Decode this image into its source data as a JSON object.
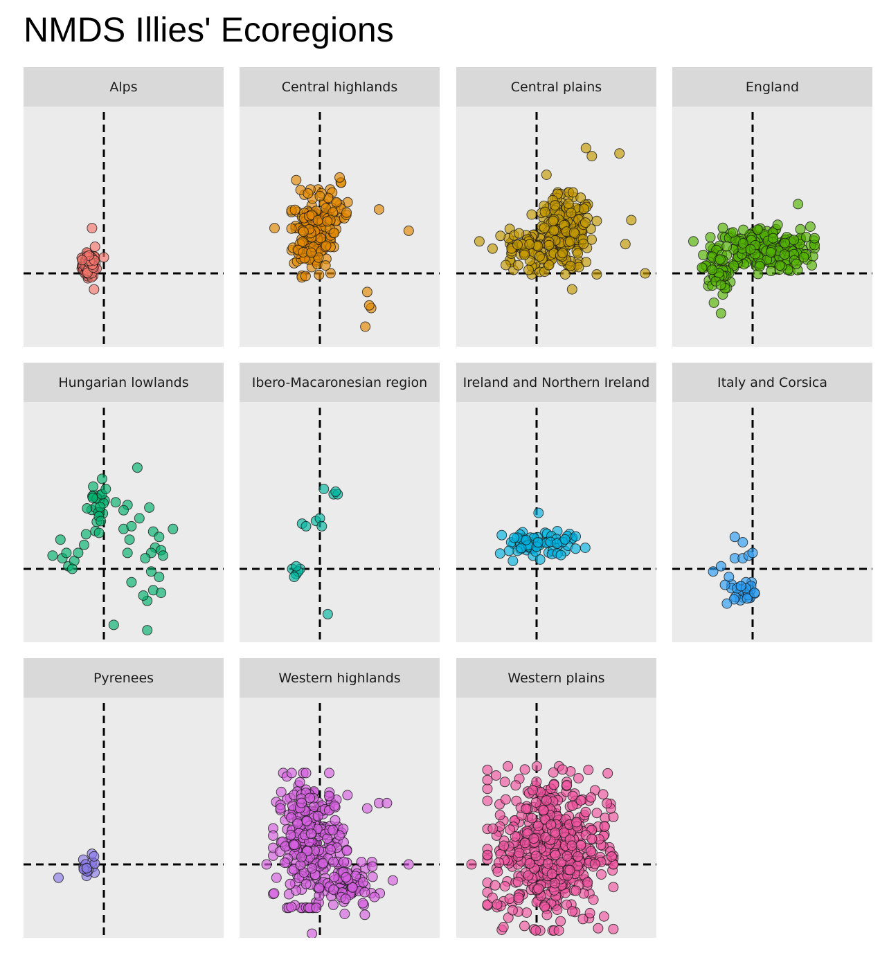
{
  "chart_data": {
    "type": "scatter",
    "title": "NMDS Illies' Ecoregions",
    "xlabel": "",
    "ylabel": "",
    "reference_lines": {
      "x": 0,
      "y": 0,
      "style": "dashed"
    },
    "panels": [
      {
        "name": "Alps",
        "color": "#F8766D",
        "clusters": [
          {
            "cx": -0.75,
            "cy": 0.3,
            "sx": 0.18,
            "sy": 0.22,
            "n": 90
          }
        ],
        "points": [
          {
            "x": -0.45,
            "y": 1.0
          },
          {
            "x": -0.5,
            "y": -0.6
          },
          {
            "x": 0.0,
            "y": 0.6
          },
          {
            "x": -1.1,
            "y": 0.5
          },
          {
            "x": -0.6,
            "y": 1.7
          }
        ]
      },
      {
        "name": "Central highlands",
        "color": "#E38900",
        "clusters": [
          {
            "cx": -0.45,
            "cy": 1.5,
            "sx": 0.45,
            "sy": 0.75,
            "n": 160
          },
          {
            "cx": 0.7,
            "cy": 2.2,
            "sx": 0.4,
            "sy": 0.55,
            "n": 40
          }
        ],
        "points": [
          {
            "x": -2.3,
            "y": 1.7
          },
          {
            "x": 4.5,
            "y": 1.6
          },
          {
            "x": 3.0,
            "y": 2.4
          },
          {
            "x": 2.4,
            "y": -0.7
          },
          {
            "x": 2.6,
            "y": -1.3
          },
          {
            "x": 2.3,
            "y": -2.0
          },
          {
            "x": 2.5,
            "y": -1.2
          },
          {
            "x": 1.0,
            "y": 3.6
          },
          {
            "x": -1.2,
            "y": 3.5
          },
          {
            "x": -0.6,
            "y": 3.0
          }
        ]
      },
      {
        "name": "Central plains",
        "color": "#C49A00",
        "clusters": [
          {
            "cx": 1.4,
            "cy": 1.5,
            "sx": 0.75,
            "sy": 0.7,
            "n": 230
          },
          {
            "cx": -0.8,
            "cy": 0.9,
            "sx": 0.65,
            "sy": 0.35,
            "n": 50
          }
        ],
        "points": [
          {
            "x": 4.7,
            "y": 6.7
          },
          {
            "x": 4.2,
            "y": 4.5
          },
          {
            "x": 2.8,
            "y": 4.4
          },
          {
            "x": 2.5,
            "y": 4.7
          },
          {
            "x": 4.8,
            "y": 2.0
          },
          {
            "x": 4.5,
            "y": 1.1
          },
          {
            "x": 5.5,
            "y": 0.0
          },
          {
            "x": 1.8,
            "y": -0.6
          },
          {
            "x": -2.9,
            "y": 1.2
          },
          {
            "x": 0.5,
            "y": 3.7
          }
        ]
      },
      {
        "name": "England",
        "color": "#53B400",
        "clusters": [
          {
            "cx": 0.5,
            "cy": 0.9,
            "sx": 1.2,
            "sy": 0.42,
            "n": 240
          },
          {
            "cx": -1.8,
            "cy": 0.0,
            "sx": 0.35,
            "sy": 0.5,
            "n": 40
          }
        ],
        "points": [
          {
            "x": -1.6,
            "y": -1.5
          },
          {
            "x": 2.3,
            "y": 2.6
          },
          {
            "x": -3.0,
            "y": 1.2
          },
          {
            "x": 3.0,
            "y": 0.3
          }
        ]
      },
      {
        "name": "Hungarian lowlands",
        "color": "#00B06D",
        "clusters": [
          {
            "cx": -0.3,
            "cy": 2.2,
            "sx": 0.25,
            "sy": 0.55,
            "n": 22
          }
        ],
        "points": [
          {
            "x": -2.6,
            "y": 0.5
          },
          {
            "x": -2.1,
            "y": 0.4
          },
          {
            "x": -1.8,
            "y": 0.1
          },
          {
            "x": -1.5,
            "y": 0.3
          },
          {
            "x": -1.3,
            "y": 0.6
          },
          {
            "x": -1.0,
            "y": 0.9
          },
          {
            "x": -1.9,
            "y": 0.6
          },
          {
            "x": -1.6,
            "y": 0.0
          },
          {
            "x": -2.2,
            "y": 1.1
          },
          {
            "x": -0.9,
            "y": 1.3
          },
          {
            "x": 1.7,
            "y": 3.8
          },
          {
            "x": 1.2,
            "y": 2.4
          },
          {
            "x": 2.3,
            "y": 2.3
          },
          {
            "x": 1.0,
            "y": 1.5
          },
          {
            "x": 1.4,
            "y": 1.6
          },
          {
            "x": 1.8,
            "y": 1.9
          },
          {
            "x": 1.3,
            "y": 1.1
          },
          {
            "x": 2.5,
            "y": 1.4
          },
          {
            "x": 2.8,
            "y": 1.2
          },
          {
            "x": 2.6,
            "y": 0.8
          },
          {
            "x": 2.9,
            "y": 0.7
          },
          {
            "x": 3.0,
            "y": 0.5
          },
          {
            "x": 2.4,
            "y": 0.6
          },
          {
            "x": 2.1,
            "y": 0.4
          },
          {
            "x": 1.2,
            "y": 0.6
          },
          {
            "x": 2.4,
            "y": -0.1
          },
          {
            "x": 2.8,
            "y": -0.3
          },
          {
            "x": 2.5,
            "y": -0.8
          },
          {
            "x": 2.2,
            "y": -1.2
          },
          {
            "x": 2.0,
            "y": -1.0
          },
          {
            "x": 2.9,
            "y": -0.9
          },
          {
            "x": 1.4,
            "y": -0.5
          },
          {
            "x": 3.5,
            "y": 1.5
          },
          {
            "x": 0.5,
            "y": -2.1
          },
          {
            "x": 2.2,
            "y": -2.3
          },
          {
            "x": 1.0,
            "y": 2.2
          },
          {
            "x": 0.6,
            "y": 2.5
          },
          {
            "x": -0.1,
            "y": 2.8
          },
          {
            "x": 0.1,
            "y": 3.0
          }
        ]
      },
      {
        "name": "Ibero-Macaronesian region",
        "color": "#00B7A0",
        "points": [
          {
            "x": 0.2,
            "y": 3.0
          },
          {
            "x": 0.7,
            "y": 2.8
          },
          {
            "x": 0.9,
            "y": 2.8
          },
          {
            "x": 0.8,
            "y": 2.9
          },
          {
            "x": -0.9,
            "y": 1.7
          },
          {
            "x": -0.7,
            "y": 1.6
          },
          {
            "x": -0.2,
            "y": 1.8
          },
          {
            "x": 0.0,
            "y": 1.9
          },
          {
            "x": 0.1,
            "y": 1.6
          },
          {
            "x": -1.4,
            "y": 0.0
          },
          {
            "x": -1.2,
            "y": -0.2
          },
          {
            "x": -1.0,
            "y": 0.0
          },
          {
            "x": -1.1,
            "y": -0.1
          },
          {
            "x": -1.3,
            "y": -0.3
          },
          {
            "x": -1.2,
            "y": 0.1
          },
          {
            "x": 0.4,
            "y": -1.7
          }
        ]
      },
      {
        "name": "Ireland and Northern Ireland",
        "color": "#00B2E0",
        "clusters": [
          {
            "cx": -0.2,
            "cy": 0.9,
            "sx": 0.75,
            "sy": 0.25,
            "n": 55
          },
          {
            "cx": 1.5,
            "cy": 1.0,
            "sx": 0.45,
            "sy": 0.22,
            "n": 15
          }
        ],
        "points": [
          {
            "x": 0.1,
            "y": 2.1
          },
          {
            "x": -1.2,
            "y": 0.3
          }
        ]
      },
      {
        "name": "Italy and Corsica",
        "color": "#2A9DF4",
        "clusters": [
          {
            "cx": -0.4,
            "cy": -0.8,
            "sx": 0.35,
            "sy": 0.18,
            "n": 22
          }
        ],
        "points": [
          {
            "x": -0.9,
            "y": 1.2
          },
          {
            "x": -0.5,
            "y": 1.0
          },
          {
            "x": -0.9,
            "y": 0.4
          },
          {
            "x": -0.5,
            "y": 0.4
          },
          {
            "x": -0.2,
            "y": 0.5
          },
          {
            "x": 0.0,
            "y": 0.6
          },
          {
            "x": -2.0,
            "y": -0.1
          },
          {
            "x": -1.6,
            "y": 0.1
          },
          {
            "x": -1.2,
            "y": -0.3
          },
          {
            "x": -1.4,
            "y": -0.6
          },
          {
            "x": -1.3,
            "y": -1.3
          },
          {
            "x": 0.1,
            "y": -0.9
          }
        ]
      },
      {
        "name": "Pyrenees",
        "color": "#8B7BE8",
        "clusters": [
          {
            "cx": -0.9,
            "cy": -0.15,
            "sx": 0.2,
            "sy": 0.15,
            "n": 15
          }
        ],
        "points": [
          {
            "x": -2.3,
            "y": -0.5
          },
          {
            "x": -0.6,
            "y": 0.4
          },
          {
            "x": -0.5,
            "y": 0.3
          }
        ]
      },
      {
        "name": "Western highlands",
        "color": "#D55FE0",
        "clusters": [
          {
            "cx": -0.5,
            "cy": 0.9,
            "sx": 0.85,
            "sy": 1.15,
            "n": 280
          },
          {
            "cx": 1.5,
            "cy": -0.9,
            "sx": 0.7,
            "sy": 0.45,
            "n": 70
          }
        ],
        "points": [
          {
            "x": 3.0,
            "y": 2.3
          },
          {
            "x": 3.4,
            "y": 2.3
          },
          {
            "x": 4.5,
            "y": 0.0
          },
          {
            "x": 3.7,
            "y": -0.6
          },
          {
            "x": 1.4,
            "y": 2.6
          },
          {
            "x": 2.4,
            "y": 2.1
          },
          {
            "x": -2.0,
            "y": 2.1
          },
          {
            "x": -2.7,
            "y": 0.0
          },
          {
            "x": -0.4,
            "y": -2.6
          }
        ]
      },
      {
        "name": "Western plains",
        "color": "#F0559F",
        "clusters": [
          {
            "cx": 0.7,
            "cy": 0.6,
            "sx": 1.45,
            "sy": 1.4,
            "n": 500
          }
        ],
        "points": [
          {
            "x": -3.3,
            "y": 0.0
          },
          {
            "x": -2.0,
            "y": -1.5
          },
          {
            "x": 0.5,
            "y": 2.4
          }
        ]
      }
    ]
  }
}
